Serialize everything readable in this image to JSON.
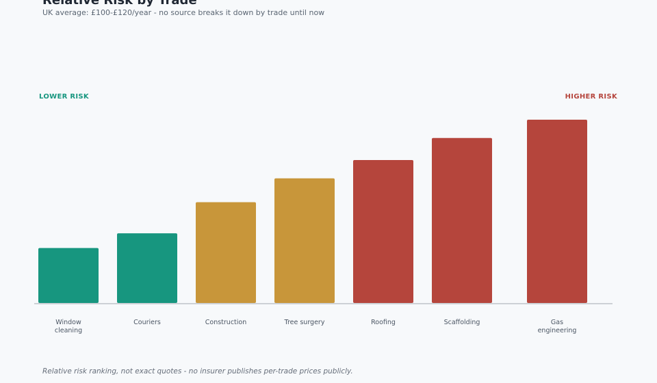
{
  "chart_data": {
    "type": "bar",
    "title": "Relative Risk by Trade",
    "subtitle": "UK average: £100-£120/year - no source breaks it down by trade until now",
    "low_label": "LOWER RISK",
    "high_label": "HIGHER RISK",
    "footnote": "Relative risk ranking, not exact quotes - no insurer publishes per-trade prices publicly.",
    "categories": [
      "Window cleaning",
      "Couriers",
      "Construction",
      "Tree surgery",
      "Roofing",
      "Scaffolding",
      "Gas engineering"
    ],
    "values": [
      30,
      38,
      55,
      68,
      78,
      90,
      100
    ],
    "colors": [
      "#17967f",
      "#17967f",
      "#c8963a",
      "#c8963a",
      "#b5453c",
      "#b5453c",
      "#b5453c"
    ],
    "ylim": [
      0,
      100
    ]
  }
}
